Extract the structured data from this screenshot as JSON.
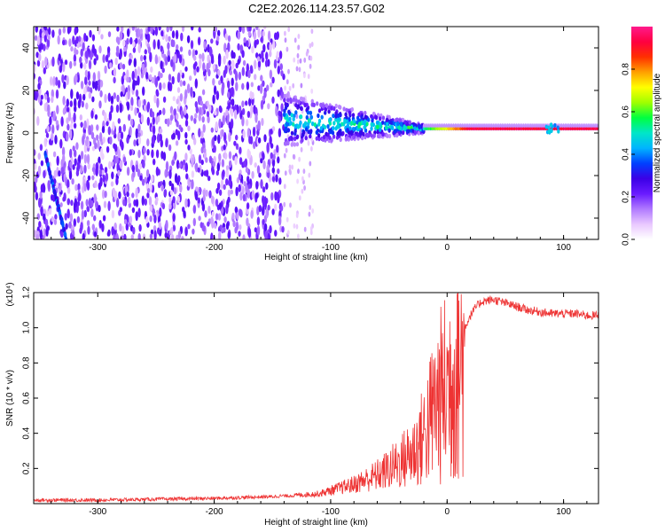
{
  "title": "C2E2.2026.114.23.57.G02",
  "chart_data": [
    {
      "type": "heatmap",
      "xlabel": "Height of straight line (km)",
      "ylabel": "Frequency (Hz)",
      "xlim": [
        -355,
        130
      ],
      "ylim": [
        -50,
        50
      ],
      "x_ticks": [
        -300,
        -200,
        -100,
        0,
        100
      ],
      "y_ticks": [
        -40,
        -20,
        0,
        20,
        40
      ],
      "colorbar": {
        "label": "Normalized spectral amplitude",
        "range": [
          0,
          1
        ],
        "ticks": [
          "0.0",
          "0.2",
          "0.4",
          "0.6",
          "0.8"
        ],
        "colors": [
          "#ffffff",
          "#e9c8ff",
          "#b079ff",
          "#6a1bff",
          "#3b00e6",
          "#0040ff",
          "#00b4ff",
          "#00e6c8",
          "#00ff40",
          "#a0ff00",
          "#ffff00",
          "#ffa000",
          "#ff3000",
          "#ff0040",
          "#ff1a8c"
        ]
      },
      "features": {
        "noise_region_x": [
          -355,
          -140
        ],
        "sparse_region_x": [
          -140,
          -115
        ],
        "converging_band_x": [
          -140,
          -20
        ],
        "carrier_line_x": [
          -20,
          130
        ],
        "carrier_frequency": 2
      }
    },
    {
      "type": "line",
      "xlabel": "Height of straight line (km)",
      "ylabel": "SNR (10 * v/v)",
      "multiplier": "(x10⁴)",
      "xlim": [
        -355,
        130
      ],
      "ylim": [
        0,
        1.2
      ],
      "x_ticks": [
        -300,
        -200,
        -100,
        0,
        100
      ],
      "y_ticks": [
        "0.2",
        "0.4",
        "0.6",
        "0.8",
        "1.0",
        "1.2"
      ],
      "color": "#ee3333",
      "x": [
        -355,
        -300,
        -250,
        -200,
        -150,
        -130,
        -110,
        -100,
        -90,
        -80,
        -70,
        -60,
        -50,
        -40,
        -30,
        -25,
        -20,
        -15,
        -10,
        -5,
        0,
        5,
        10,
        15,
        20,
        25,
        30,
        40,
        50,
        60,
        70,
        80,
        90,
        100,
        110,
        120,
        130
      ],
      "y": [
        0.02,
        0.02,
        0.025,
        0.03,
        0.04,
        0.05,
        0.06,
        0.08,
        0.1,
        0.12,
        0.15,
        0.18,
        0.22,
        0.27,
        0.33,
        0.38,
        0.45,
        0.55,
        0.65,
        0.72,
        0.78,
        0.86,
        0.93,
        1.0,
        1.07,
        1.12,
        1.15,
        1.16,
        1.14,
        1.12,
        1.1,
        1.09,
        1.08,
        1.08,
        1.08,
        1.07,
        1.07
      ]
    }
  ]
}
